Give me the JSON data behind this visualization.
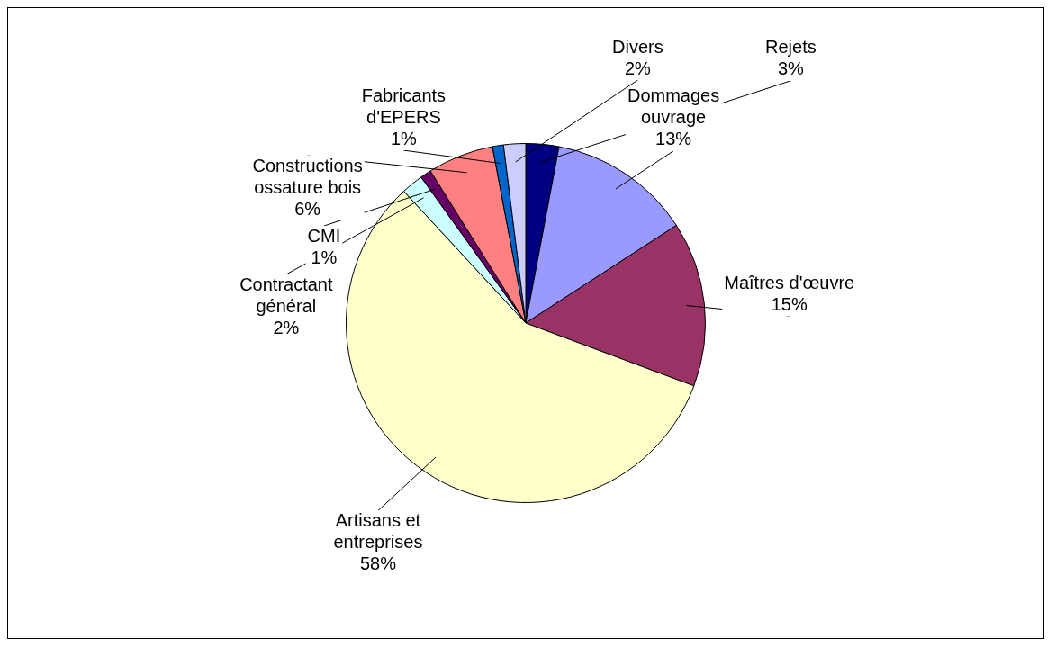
{
  "chart_data": {
    "type": "pie",
    "categories": [
      "Rejets",
      "Dommages ouvrage",
      "Maîtres d'œuvre",
      "Artisans et entreprises",
      "Contractant général",
      "CMI",
      "Constructions ossature bois",
      "Fabricants d'EPERS",
      "Divers"
    ],
    "values": [
      3,
      13,
      15,
      58,
      2,
      1,
      6,
      1,
      2
    ],
    "value_labels": [
      "3%",
      "13%",
      "15%",
      "58%",
      "2%",
      "1%",
      "6%",
      "1%",
      "2%"
    ],
    "colors": [
      "#000080",
      "#9999ff",
      "#993366",
      "#ffffcc",
      "#ccffff",
      "#660066",
      "#ff8080",
      "#0066cc",
      "#ccccff"
    ]
  }
}
